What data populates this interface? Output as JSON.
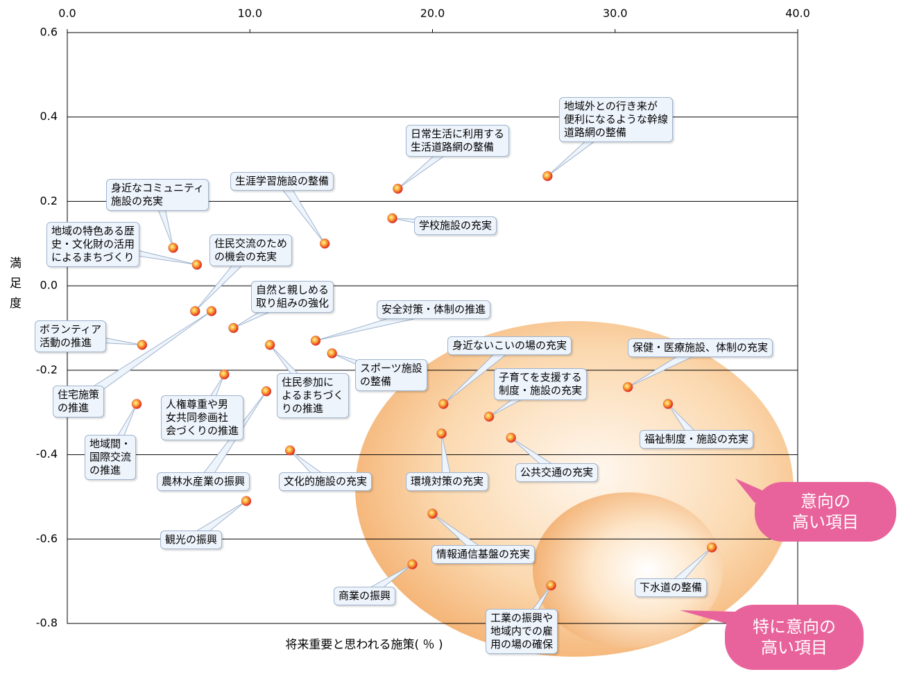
{
  "chart_data": {
    "type": "scatter",
    "x_label": "将来重要と思われる施策( ％ )",
    "y_label": "満足度",
    "xlim": [
      0,
      40
    ],
    "xticks": [
      {
        "value": 0,
        "label": "0.0"
      },
      {
        "value": 10,
        "label": "10.0"
      },
      {
        "value": 20,
        "label": "20.0"
      },
      {
        "value": 30,
        "label": "30.0"
      },
      {
        "value": 40,
        "label": "40.0"
      }
    ],
    "ylim": [
      -0.8,
      0.6
    ],
    "yticks": [
      0.6,
      0.4,
      0.2,
      {
        "value": 0,
        "label": "0.0"
      },
      -0.2,
      -0.4,
      -0.6,
      -0.8
    ],
    "grid": true,
    "points": [
      {
        "label": "地域外との行き来が\n便利になるような幹線\n道路網の整備",
        "x": 26.3,
        "y": 0.26
      },
      {
        "label": "日常生活に利用する\n生活道路網の整備",
        "x": 18.1,
        "y": 0.23
      },
      {
        "label": "生涯学習施設の整備",
        "x": 14.1,
        "y": 0.1
      },
      {
        "label": "学校施設の充実",
        "x": 17.8,
        "y": 0.16
      },
      {
        "label": "身近なコミュニティ\n施設の充実",
        "x": 5.8,
        "y": 0.09
      },
      {
        "label": "地域の特色ある歴\n史・文化財の活用\nによるまちづくり",
        "x": 7.1,
        "y": 0.05
      },
      {
        "label": "住民交流のため\nの機会の充実",
        "x": 7.0,
        "y": -0.06
      },
      {
        "label": "住宅施策\nの推進",
        "x": 7.9,
        "y": -0.06
      },
      {
        "label": "自然と親しめる\n取り組みの強化",
        "x": 9.1,
        "y": -0.1
      },
      {
        "label": "ボランティア\n活動の推進",
        "x": 4.1,
        "y": -0.14
      },
      {
        "label": "安全対策・体制の推進",
        "x": 13.6,
        "y": -0.13
      },
      {
        "label": "スポーツ施設\nの整備",
        "x": 14.5,
        "y": -0.16
      },
      {
        "label": "住民参加に\nよるまちづく\nりの推進",
        "x": 11.1,
        "y": -0.14
      },
      {
        "label": "人権尊重や男\n女共同参画社\n会づくりの推進",
        "x": 8.6,
        "y": -0.21
      },
      {
        "label": "農林水産業の振興",
        "x": 10.9,
        "y": -0.25
      },
      {
        "label": "地域間・\n国際交流\nの推進",
        "x": 3.8,
        "y": -0.28
      },
      {
        "label": "文化的施設の充実",
        "x": 12.2,
        "y": -0.39
      },
      {
        "label": "観光の振興",
        "x": 9.8,
        "y": -0.51
      },
      {
        "label": "身近ないこいの場の充実",
        "x": 20.6,
        "y": -0.28
      },
      {
        "label": "子育てを支援する\n制度・施設の充実",
        "x": 23.1,
        "y": -0.31
      },
      {
        "label": "環境対策の充実",
        "x": 20.5,
        "y": -0.35
      },
      {
        "label": "公共交通の充実",
        "x": 24.3,
        "y": -0.36
      },
      {
        "label": "保健・医療施設、体制の充実",
        "x": 30.7,
        "y": -0.24
      },
      {
        "label": "福祉制度・施設の充実",
        "x": 32.9,
        "y": -0.28
      },
      {
        "label": "情報通信基盤の充実",
        "x": 20.0,
        "y": -0.54
      },
      {
        "label": "商業の振興",
        "x": 18.9,
        "y": -0.66
      },
      {
        "label": "工業の振興や\n地域内での雇\n用の場の確保",
        "x": 26.5,
        "y": -0.71
      },
      {
        "label": "下水道の整備",
        "x": 35.3,
        "y": -0.62
      }
    ],
    "annotations": [
      "意向の\n高い項目",
      "特に意向の\n高い項目"
    ]
  }
}
